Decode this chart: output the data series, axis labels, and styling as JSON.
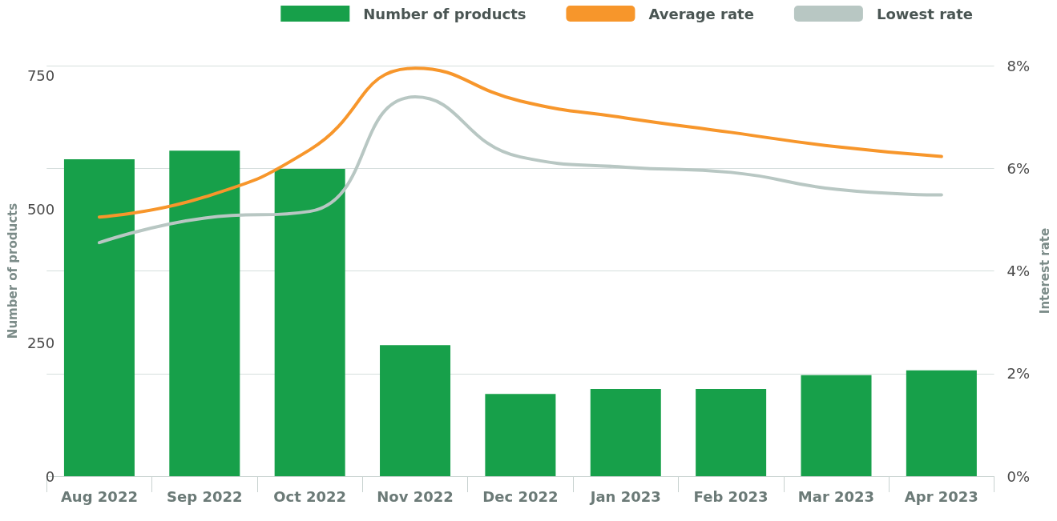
{
  "chart_data": {
    "type": "bar",
    "ylabel": "Number of products",
    "y2label": "Interest rate",
    "categories": [
      "Aug 2022",
      "Sep 2022",
      "Oct 2022",
      "Nov 2022",
      "Dec 2022",
      "Jan 2023",
      "Feb 2023",
      "Mar 2023",
      "Apr 2023"
    ],
    "series": [
      {
        "name": "Number of products",
        "color": "#17a04a",
        "values": [
          593,
          609,
          575,
          245,
          154,
          163,
          163,
          189,
          198
        ]
      },
      {
        "name": "Average rate",
        "type": "line",
        "axis": "y2",
        "color": "#f7962b",
        "values": [
          5.05,
          5.44,
          6.36,
          7.95,
          7.31,
          6.98,
          6.7,
          6.42,
          6.23
        ]
      },
      {
        "name": "Lowest rate",
        "type": "line",
        "axis": "y2",
        "color": "#b8c7c3",
        "values": [
          4.55,
          5.03,
          5.16,
          7.39,
          6.22,
          6.02,
          5.92,
          5.59,
          5.48
        ]
      }
    ],
    "ylim": [
      0,
      768
    ],
    "yticks": [
      0,
      250,
      500,
      750
    ],
    "y2lim": [
      0,
      8
    ],
    "y2ticks": [
      {
        "value": 0,
        "label": "0%"
      },
      {
        "value": 2,
        "label": "2%"
      },
      {
        "value": 4,
        "label": "4%"
      },
      {
        "value": 6,
        "label": "6%"
      },
      {
        "value": 8,
        "label": "8%"
      }
    ],
    "grid": "y",
    "legend": "top right",
    "marker": "none",
    "line_style": "solid"
  }
}
